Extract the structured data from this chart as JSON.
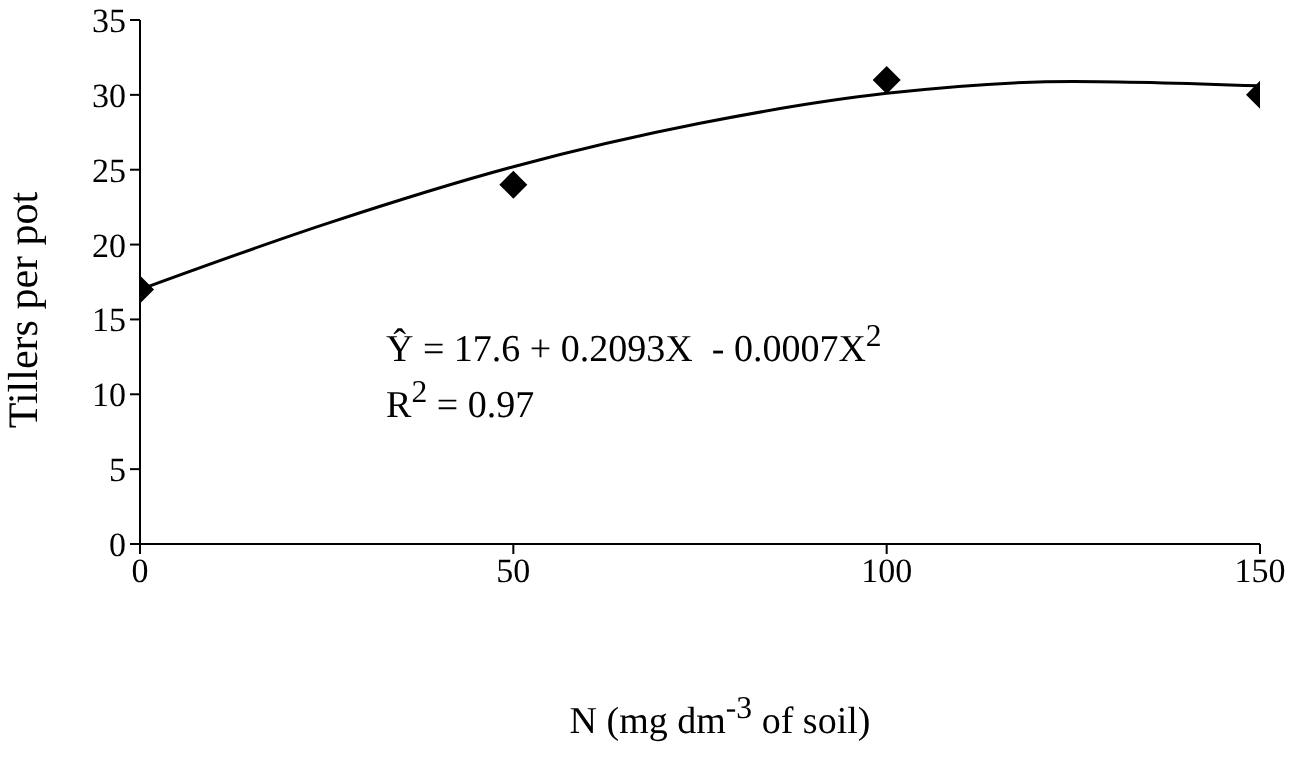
{
  "chart_data": {
    "type": "scatter",
    "xlabel": "N (mg dm$^{-3}$ of soil)",
    "ylabel": "Tillers per pot",
    "xlim": [
      0,
      150
    ],
    "xticks": [
      0,
      50,
      100,
      150
    ],
    "ylim": [
      0,
      35
    ],
    "yticks": [
      0,
      5,
      10,
      15,
      20,
      25,
      30,
      35
    ],
    "annotations": [
      "Ŷ = 17.6 + 0.2093X  - 0.0007X$^{2}$",
      "R$^{2}$ = 0.97"
    ],
    "series": [
      {
        "color": "#000000",
        "marker": "diamond",
        "x": [
          0,
          50,
          100,
          150
        ],
        "values": [
          17,
          24,
          31,
          30
        ]
      },
      {
        "type": "line",
        "color": "#000000",
        "marker": "none",
        "line_style": "solid",
        "x": [
          0,
          25,
          50,
          75,
          100,
          125,
          150
        ],
        "values": [
          17,
          21.4,
          25.2,
          28.1,
          30.1,
          30.9,
          30.6
        ]
      }
    ]
  }
}
